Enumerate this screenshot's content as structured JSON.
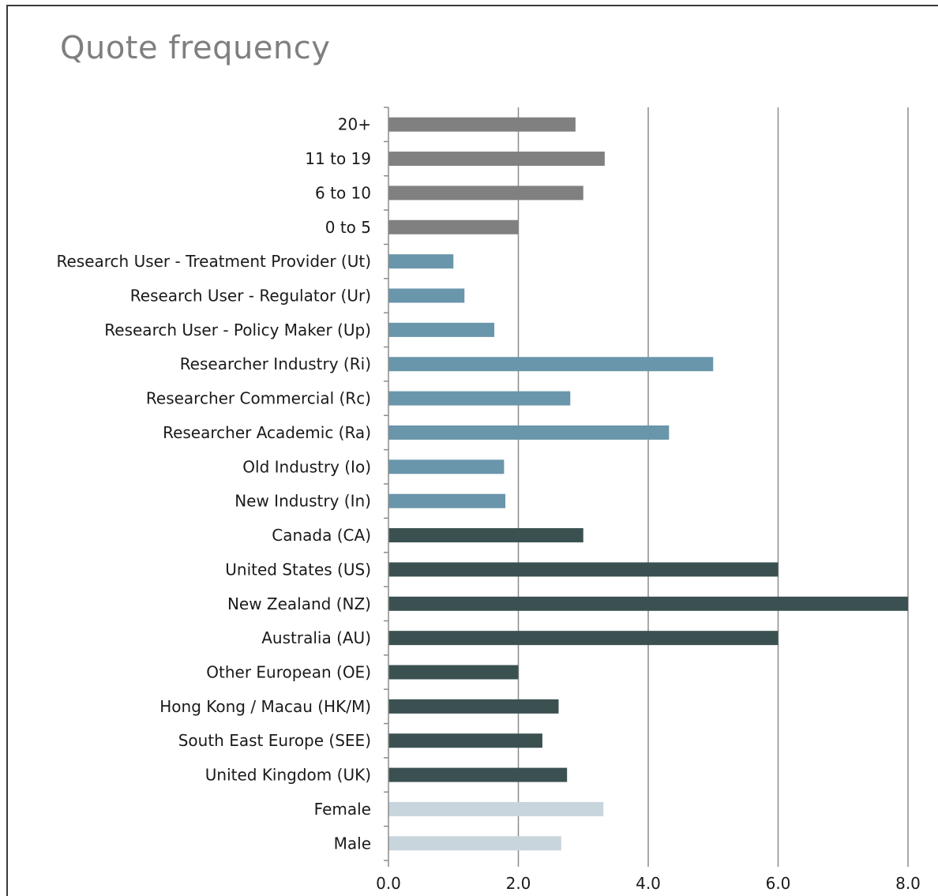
{
  "title": "Quote frequency",
  "chart_data": {
    "type": "bar",
    "orientation": "horizontal",
    "title": "Quote frequency",
    "xlabel": "",
    "ylabel": "",
    "xlim": [
      0,
      8
    ],
    "x_ticks": [
      "0.0",
      "2.0",
      "4.0",
      "6.0",
      "8.0"
    ],
    "grid": true,
    "legend": "none",
    "categories": [
      "20+",
      "11 to 19",
      "6 to 10",
      "0 to 5",
      "Research User - Treatment Provider (Ut)",
      "Research User - Regulator (Ur)",
      "Research User - Policy Maker (Up)",
      "Researcher Industry (Ri)",
      "Researcher Commercial (Rc)",
      "Researcher Academic (Ra)",
      "Old Industry (Io)",
      "New Industry (In)",
      "Canada (CA)",
      "United States (US)",
      "New Zealand (NZ)",
      "Australia (AU)",
      "Other European (OE)",
      "Hong Kong / Macau (HK/M)",
      "South East Europe (SEE)",
      "United Kingdom (UK)",
      "Female",
      "Male"
    ],
    "values": [
      2.88,
      3.33,
      3.0,
      2.0,
      1.0,
      1.17,
      1.63,
      5.0,
      2.8,
      4.32,
      1.78,
      1.8,
      3.0,
      6.0,
      8.0,
      6.0,
      2.0,
      2.62,
      2.37,
      2.75,
      3.31,
      2.66
    ],
    "groups": [
      "gray",
      "gray",
      "gray",
      "gray",
      "teal",
      "teal",
      "teal",
      "teal",
      "teal",
      "teal",
      "teal",
      "teal",
      "dark",
      "dark",
      "dark",
      "dark",
      "dark",
      "dark",
      "dark",
      "dark",
      "light",
      "light"
    ],
    "group_colors": {
      "gray": "#808080",
      "teal": "#6996ab",
      "dark": "#3b5151",
      "light": "#c8d5dc"
    },
    "grid_color": "#8c8c8c",
    "axis_color": "#8c8c8c"
  }
}
